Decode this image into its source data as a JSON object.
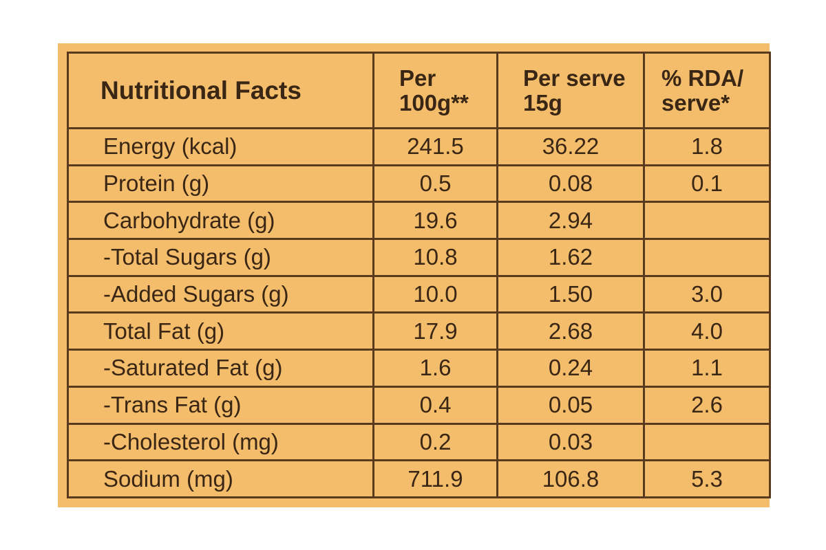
{
  "table": {
    "title": "Nutritional Facts",
    "columns": [
      "Per 100g**",
      "Per serve 15g",
      "% RDA/ serve*"
    ],
    "rows": [
      {
        "name": "Energy (kcal)",
        "per100g": "241.5",
        "perServe": "36.22",
        "rda": "1.8"
      },
      {
        "name": "Protein (g)",
        "per100g": "0.5",
        "perServe": "0.08",
        "rda": "0.1"
      },
      {
        "name": "Carbohydrate (g)",
        "per100g": "19.6",
        "perServe": "2.94",
        "rda": ""
      },
      {
        "name": "-Total Sugars (g)",
        "per100g": "10.8",
        "perServe": "1.62",
        "rda": ""
      },
      {
        "name": "-Added Sugars (g)",
        "per100g": "10.0",
        "perServe": "1.50",
        "rda": "3.0"
      },
      {
        "name": "Total Fat (g)",
        "per100g": "17.9",
        "perServe": "2.68",
        "rda": "4.0"
      },
      {
        "name": "-Saturated Fat (g)",
        "per100g": "1.6",
        "perServe": "0.24",
        "rda": "1.1"
      },
      {
        "name": "-Trans Fat (g)",
        "per100g": "0.4",
        "perServe": "0.05",
        "rda": "2.6"
      },
      {
        "name": "-Cholesterol (mg)",
        "per100g": "0.2",
        "perServe": "0.03",
        "rda": ""
      },
      {
        "name": "Sodium (mg)",
        "per100g": "711.9",
        "perServe": "106.8",
        "rda": "5.3"
      }
    ]
  },
  "colors": {
    "background": "#f3bd6c",
    "border": "#5a3a1e",
    "text": "#3a2614"
  }
}
